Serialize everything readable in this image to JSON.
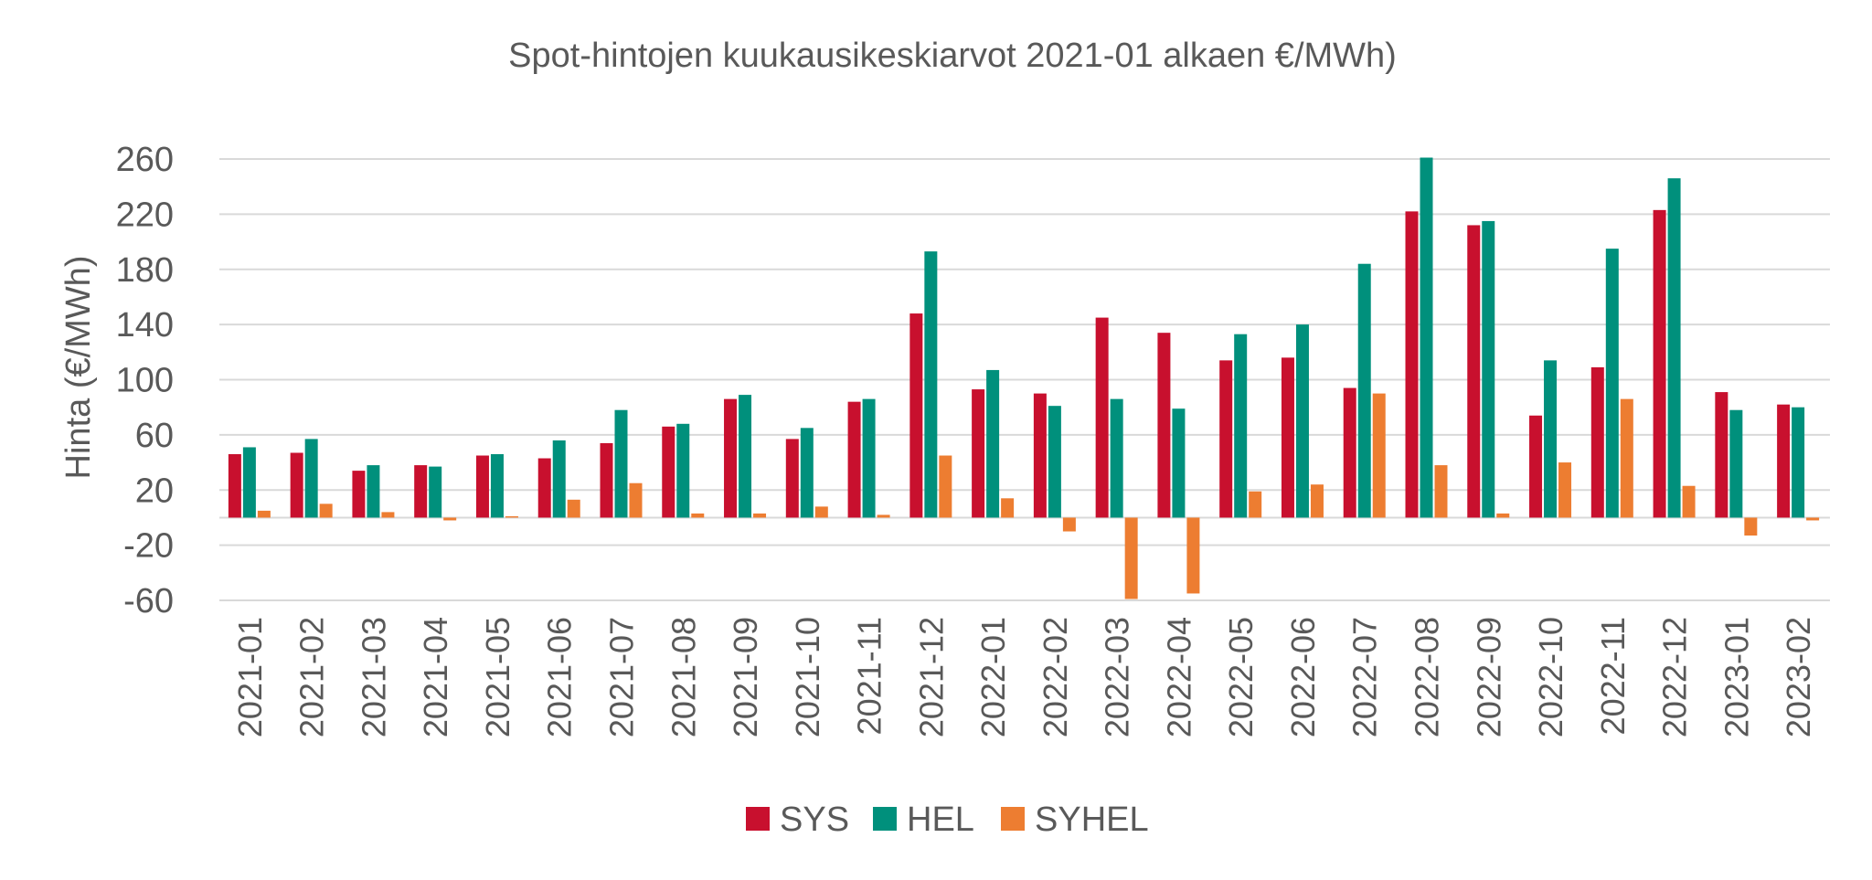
{
  "chart_data": {
    "type": "bar",
    "title": "Spot-hintojen kuukausikeskiarvot 2021-01 alkaen €/MWh)",
    "xlabel": "",
    "ylabel": "Hinta (€/MWh)",
    "ylim": [
      -60,
      260
    ],
    "yticks": [
      -60,
      -20,
      20,
      60,
      100,
      140,
      180,
      220,
      260
    ],
    "grid": true,
    "legend_position": "bottom",
    "categories": [
      "2021-01",
      "2021-02",
      "2021-03",
      "2021-04",
      "2021-05",
      "2021-06",
      "2021-07",
      "2021-08",
      "2021-09",
      "2021-10",
      "2021-11",
      "2021-12",
      "2022-01",
      "2022-02",
      "2022-03",
      "2022-04",
      "2022-05",
      "2022-06",
      "2022-07",
      "2022-08",
      "2022-09",
      "2022-10",
      "2022-11",
      "2022-12",
      "2023-01",
      "2023-02"
    ],
    "series": [
      {
        "name": "SYS",
        "color": "#c8102e",
        "values": [
          46,
          47,
          34,
          38,
          45,
          43,
          54,
          66,
          86,
          57,
          84,
          148,
          93,
          90,
          145,
          134,
          114,
          116,
          94,
          222,
          212,
          74,
          109,
          223,
          91,
          82
        ]
      },
      {
        "name": "HEL",
        "color": "#00907c",
        "values": [
          51,
          57,
          38,
          37,
          46,
          56,
          78,
          68,
          89,
          65,
          86,
          193,
          107,
          81,
          86,
          79,
          133,
          140,
          184,
          261,
          215,
          114,
          195,
          246,
          78,
          80
        ]
      },
      {
        "name": "SYHEL",
        "color": "#ed7d31",
        "values": [
          5,
          10,
          4,
          -2,
          1,
          13,
          25,
          3,
          3,
          8,
          2,
          45,
          14,
          -10,
          -59,
          -55,
          19,
          24,
          90,
          38,
          3,
          40,
          86,
          23,
          -13,
          -2
        ]
      }
    ]
  }
}
